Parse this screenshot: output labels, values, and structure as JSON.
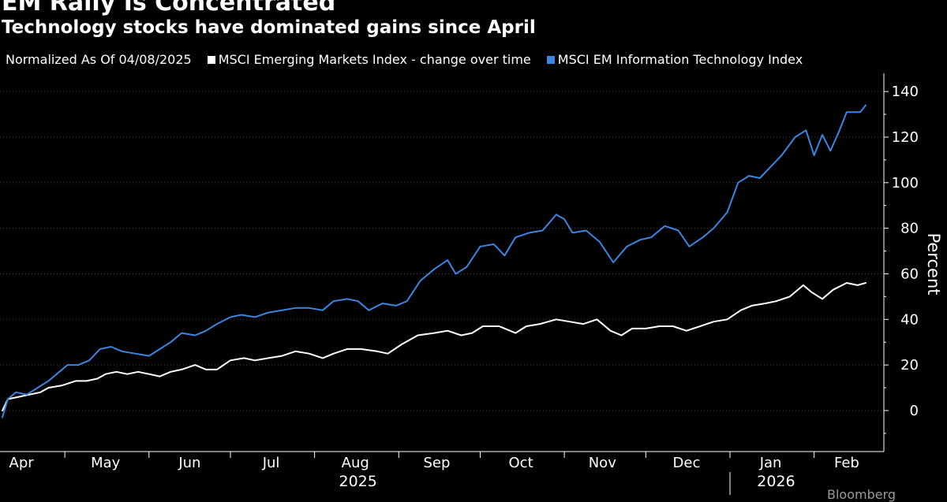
{
  "title": "EM Rally Is Concentrated",
  "subtitle": "Technology stocks have dominated gains since April",
  "legend": {
    "note": "Normalized As Of 04/08/2025",
    "items": [
      {
        "label": "MSCI Emerging Markets Index - change over time",
        "color": "#ffffff"
      },
      {
        "label": "MSCI EM Information Technology Index",
        "color": "#3a86e0"
      }
    ]
  },
  "footer": {
    "source": "Bloomberg"
  },
  "chart_data": {
    "type": "line",
    "ylabel": "Percent",
    "ylim": [
      -18,
      148
    ],
    "yticks": [
      0,
      20,
      40,
      60,
      80,
      100,
      120,
      140
    ],
    "xlim": [
      "2025-04-08",
      "2026-02-20"
    ],
    "month_labels": [
      {
        "label": "Apr",
        "date": "2025-04-15"
      },
      {
        "label": "May",
        "date": "2025-05-16"
      },
      {
        "label": "Jun",
        "date": "2025-06-16"
      },
      {
        "label": "Jul",
        "date": "2025-07-16"
      },
      {
        "label": "Aug",
        "date": "2025-08-16"
      },
      {
        "label": "Sep",
        "date": "2025-09-15"
      },
      {
        "label": "Oct",
        "date": "2025-10-16"
      },
      {
        "label": "Nov",
        "date": "2025-11-15"
      },
      {
        "label": "Dec",
        "date": "2025-12-16"
      },
      {
        "label": "Jan",
        "date": "2026-01-16"
      },
      {
        "label": "Feb",
        "date": "2026-02-13"
      }
    ],
    "month_starts": [
      "2025-05-01",
      "2025-06-01",
      "2025-07-01",
      "2025-08-01",
      "2025-09-01",
      "2025-10-01",
      "2025-11-01",
      "2025-12-01",
      "2026-01-01",
      "2026-02-01"
    ],
    "year_labels": [
      {
        "label": "2025",
        "date": "2025-08-17"
      },
      {
        "label": "2026",
        "date": "2026-01-18"
      }
    ],
    "year_divider": "2026-01-01",
    "grid": true,
    "series": [
      {
        "name": "MSCI Emerging Markets Index - change over time",
        "color": "#ffffff",
        "points": [
          [
            "2025-04-08",
            0
          ],
          [
            "2025-04-10",
            5
          ],
          [
            "2025-04-14",
            6
          ],
          [
            "2025-04-18",
            7
          ],
          [
            "2025-04-22",
            8
          ],
          [
            "2025-04-25",
            10
          ],
          [
            "2025-04-30",
            11
          ],
          [
            "2025-05-05",
            13
          ],
          [
            "2025-05-09",
            13
          ],
          [
            "2025-05-13",
            14
          ],
          [
            "2025-05-16",
            16
          ],
          [
            "2025-05-20",
            17
          ],
          [
            "2025-05-24",
            16
          ],
          [
            "2025-05-28",
            17
          ],
          [
            "2025-06-01",
            16
          ],
          [
            "2025-06-05",
            15
          ],
          [
            "2025-06-09",
            17
          ],
          [
            "2025-06-13",
            18
          ],
          [
            "2025-06-18",
            20
          ],
          [
            "2025-06-22",
            18
          ],
          [
            "2025-06-26",
            18
          ],
          [
            "2025-07-01",
            22
          ],
          [
            "2025-07-06",
            23
          ],
          [
            "2025-07-10",
            22
          ],
          [
            "2025-07-15",
            23
          ],
          [
            "2025-07-20",
            24
          ],
          [
            "2025-07-25",
            26
          ],
          [
            "2025-07-30",
            25
          ],
          [
            "2025-08-04",
            23
          ],
          [
            "2025-08-08",
            25
          ],
          [
            "2025-08-13",
            27
          ],
          [
            "2025-08-18",
            27
          ],
          [
            "2025-08-24",
            26
          ],
          [
            "2025-08-28",
            25
          ],
          [
            "2025-09-02",
            29
          ],
          [
            "2025-09-08",
            33
          ],
          [
            "2025-09-14",
            34
          ],
          [
            "2025-09-19",
            35
          ],
          [
            "2025-09-24",
            33
          ],
          [
            "2025-09-28",
            34
          ],
          [
            "2025-10-02",
            37
          ],
          [
            "2025-10-08",
            37
          ],
          [
            "2025-10-14",
            34
          ],
          [
            "2025-10-18",
            37
          ],
          [
            "2025-10-23",
            38
          ],
          [
            "2025-10-29",
            40
          ],
          [
            "2025-11-03",
            39
          ],
          [
            "2025-11-08",
            38
          ],
          [
            "2025-11-13",
            40
          ],
          [
            "2025-11-18",
            35
          ],
          [
            "2025-11-22",
            33
          ],
          [
            "2025-11-26",
            36
          ],
          [
            "2025-12-01",
            36
          ],
          [
            "2025-12-06",
            37
          ],
          [
            "2025-12-11",
            37
          ],
          [
            "2025-12-16",
            35
          ],
          [
            "2025-12-21",
            37
          ],
          [
            "2025-12-26",
            39
          ],
          [
            "2025-12-31",
            40
          ],
          [
            "2026-01-05",
            44
          ],
          [
            "2026-01-09",
            46
          ],
          [
            "2026-01-14",
            47
          ],
          [
            "2026-01-18",
            48
          ],
          [
            "2026-01-23",
            50
          ],
          [
            "2026-01-28",
            55
          ],
          [
            "2026-01-31",
            52
          ],
          [
            "2026-02-04",
            49
          ],
          [
            "2026-02-08",
            53
          ],
          [
            "2026-02-13",
            56
          ],
          [
            "2026-02-17",
            55
          ],
          [
            "2026-02-20",
            56
          ]
        ]
      },
      {
        "name": "MSCI EM Information Technology Index",
        "color": "#3a86e0",
        "points": [
          [
            "2025-04-08",
            -3
          ],
          [
            "2025-04-10",
            5
          ],
          [
            "2025-04-13",
            8
          ],
          [
            "2025-04-17",
            7
          ],
          [
            "2025-04-21",
            10
          ],
          [
            "2025-04-25",
            13
          ],
          [
            "2025-04-29",
            17
          ],
          [
            "2025-05-02",
            20
          ],
          [
            "2025-05-06",
            20
          ],
          [
            "2025-05-10",
            22
          ],
          [
            "2025-05-14",
            27
          ],
          [
            "2025-05-18",
            28
          ],
          [
            "2025-05-22",
            26
          ],
          [
            "2025-05-27",
            25
          ],
          [
            "2025-06-01",
            24
          ],
          [
            "2025-06-05",
            27
          ],
          [
            "2025-06-09",
            30
          ],
          [
            "2025-06-13",
            34
          ],
          [
            "2025-06-18",
            33
          ],
          [
            "2025-06-22",
            35
          ],
          [
            "2025-06-26",
            38
          ],
          [
            "2025-07-01",
            41
          ],
          [
            "2025-07-05",
            42
          ],
          [
            "2025-07-10",
            41
          ],
          [
            "2025-07-15",
            43
          ],
          [
            "2025-07-20",
            44
          ],
          [
            "2025-07-25",
            45
          ],
          [
            "2025-07-30",
            45
          ],
          [
            "2025-08-04",
            44
          ],
          [
            "2025-08-08",
            48
          ],
          [
            "2025-08-13",
            49
          ],
          [
            "2025-08-17",
            48
          ],
          [
            "2025-08-21",
            44
          ],
          [
            "2025-08-26",
            47
          ],
          [
            "2025-08-31",
            46
          ],
          [
            "2025-09-04",
            48
          ],
          [
            "2025-09-09",
            57
          ],
          [
            "2025-09-14",
            62
          ],
          [
            "2025-09-19",
            66
          ],
          [
            "2025-09-22",
            60
          ],
          [
            "2025-09-26",
            63
          ],
          [
            "2025-10-01",
            72
          ],
          [
            "2025-10-06",
            73
          ],
          [
            "2025-10-10",
            68
          ],
          [
            "2025-10-14",
            76
          ],
          [
            "2025-10-19",
            78
          ],
          [
            "2025-10-24",
            79
          ],
          [
            "2025-10-29",
            86
          ],
          [
            "2025-11-01",
            84
          ],
          [
            "2025-11-04",
            78
          ],
          [
            "2025-11-09",
            79
          ],
          [
            "2025-11-14",
            74
          ],
          [
            "2025-11-19",
            65
          ],
          [
            "2025-11-24",
            72
          ],
          [
            "2025-11-29",
            75
          ],
          [
            "2025-12-03",
            76
          ],
          [
            "2025-12-08",
            81
          ],
          [
            "2025-12-13",
            79
          ],
          [
            "2025-12-17",
            72
          ],
          [
            "2025-12-22",
            76
          ],
          [
            "2025-12-26",
            80
          ],
          [
            "2025-12-31",
            87
          ],
          [
            "2026-01-04",
            100
          ],
          [
            "2026-01-08",
            103
          ],
          [
            "2026-01-12",
            102
          ],
          [
            "2026-01-16",
            107
          ],
          [
            "2026-01-20",
            112
          ],
          [
            "2026-01-25",
            120
          ],
          [
            "2026-01-29",
            123
          ],
          [
            "2026-02-01",
            112
          ],
          [
            "2026-02-04",
            121
          ],
          [
            "2026-02-07",
            114
          ],
          [
            "2026-02-10",
            122
          ],
          [
            "2026-02-13",
            131
          ],
          [
            "2026-02-18",
            131
          ],
          [
            "2026-02-20",
            134
          ]
        ]
      }
    ]
  }
}
